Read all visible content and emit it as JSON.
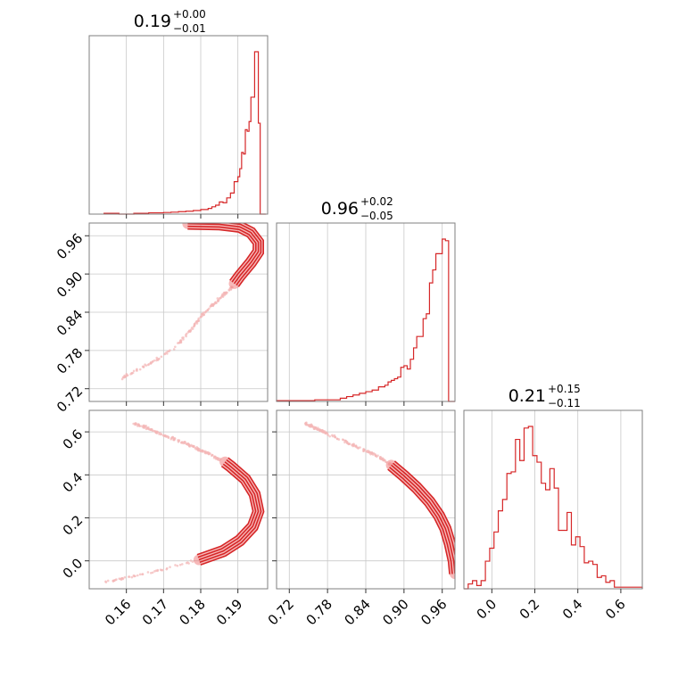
{
  "figure": "corner plot",
  "chart_data": [
    {
      "type": "histogram",
      "panel": "marginal-param-1",
      "title": {
        "value": "0.19",
        "plus": "+0.00",
        "minus": "−0.01"
      },
      "xlim": [
        0.15,
        0.198
      ],
      "bin_edges": [
        0.154,
        0.158,
        0.162,
        0.166,
        0.17,
        0.172,
        0.174,
        0.176,
        0.178,
        0.18,
        0.182,
        0.183,
        0.184,
        0.185,
        0.186,
        0.187,
        0.188,
        0.189,
        0.19,
        0.1905,
        0.191,
        0.1915,
        0.192,
        0.1925,
        0.193,
        0.1935,
        0.194,
        0.1945,
        0.195,
        0.1955,
        0.196,
        0.1965,
        0.197,
        0.1975
      ],
      "counts": [
        0.005,
        0.0,
        0.005,
        0.008,
        0.01,
        0.012,
        0.015,
        0.018,
        0.022,
        0.028,
        0.035,
        0.045,
        0.055,
        0.075,
        0.07,
        0.1,
        0.13,
        0.2,
        0.23,
        0.28,
        0.38,
        0.37,
        0.52,
        0.51,
        0.57,
        0.72,
        0.72,
        1.0,
        1.0,
        0.56,
        0.0,
        0.0,
        0.0
      ],
      "xticks": [
        0.16,
        0.17,
        0.18,
        0.19
      ]
    },
    {
      "type": "histogram",
      "panel": "marginal-param-2",
      "title": {
        "value": "0.96",
        "plus": "+0.02",
        "minus": "−0.05"
      },
      "xlim": [
        0.7,
        0.98
      ],
      "bin_edges": [
        0.7,
        0.74,
        0.76,
        0.78,
        0.8,
        0.81,
        0.82,
        0.83,
        0.84,
        0.85,
        0.86,
        0.87,
        0.875,
        0.88,
        0.885,
        0.89,
        0.895,
        0.9,
        0.905,
        0.91,
        0.915,
        0.92,
        0.925,
        0.93,
        0.935,
        0.94,
        0.945,
        0.95,
        0.955,
        0.96,
        0.965,
        0.97,
        0.975,
        0.98
      ],
      "counts": [
        0.005,
        0.005,
        0.01,
        0.01,
        0.02,
        0.03,
        0.04,
        0.05,
        0.06,
        0.07,
        0.09,
        0.1,
        0.12,
        0.13,
        0.14,
        0.15,
        0.21,
        0.22,
        0.2,
        0.26,
        0.33,
        0.4,
        0.4,
        0.51,
        0.54,
        0.73,
        0.81,
        0.91,
        0.91,
        1.0,
        0.99,
        0.0,
        0.0
      ],
      "xticks": [
        0.72,
        0.78,
        0.84,
        0.9,
        0.96
      ]
    },
    {
      "type": "histogram",
      "panel": "marginal-param-3",
      "title": {
        "value": "0.21",
        "plus": "+0.15",
        "minus": "−0.11"
      },
      "xlim": [
        -0.13,
        0.7
      ],
      "bin_edges": [
        -0.13,
        -0.11,
        -0.09,
        -0.07,
        -0.05,
        -0.03,
        -0.01,
        0.01,
        0.03,
        0.05,
        0.07,
        0.09,
        0.11,
        0.13,
        0.15,
        0.17,
        0.19,
        0.21,
        0.23,
        0.25,
        0.27,
        0.29,
        0.31,
        0.33,
        0.35,
        0.37,
        0.39,
        0.41,
        0.43,
        0.45,
        0.47,
        0.49,
        0.51,
        0.53,
        0.55,
        0.57,
        0.59,
        0.61,
        0.63,
        0.65,
        0.67,
        0.7
      ],
      "counts": [
        0.0,
        0.03,
        0.05,
        0.02,
        0.05,
        0.17,
        0.25,
        0.35,
        0.48,
        0.55,
        0.71,
        0.72,
        0.92,
        0.79,
        0.99,
        1.0,
        0.82,
        0.78,
        0.65,
        0.61,
        0.74,
        0.62,
        0.36,
        0.36,
        0.47,
        0.27,
        0.32,
        0.26,
        0.16,
        0.17,
        0.15,
        0.07,
        0.08,
        0.04,
        0.05,
        0.01,
        0.01,
        0.01,
        0.01,
        0.01,
        0.01
      ],
      "xticks": [
        0.0,
        0.2,
        0.4,
        0.6
      ],
      "xticklabels": [
        "0.0",
        "0.2",
        "0.4",
        "0.6"
      ]
    },
    {
      "type": "scatter",
      "panel": "joint-param-1-vs-param-2",
      "xlim": [
        0.15,
        0.198
      ],
      "ylim": [
        0.7,
        0.98
      ],
      "yticks": [
        0.72,
        0.78,
        0.84,
        0.9,
        0.96
      ],
      "contour_center": [
        [
          0.1765,
          0.979
        ],
        [
          0.185,
          0.978
        ],
        [
          0.1905,
          0.974
        ],
        [
          0.1935,
          0.965
        ],
        [
          0.1955,
          0.95
        ],
        [
          0.1955,
          0.935
        ],
        [
          0.1935,
          0.918
        ],
        [
          0.1905,
          0.897
        ],
        [
          0.189,
          0.885
        ]
      ],
      "sample_band": [
        [
          0.1885,
          0.88
        ],
        [
          0.186,
          0.866
        ],
        [
          0.183,
          0.85
        ],
        [
          0.18,
          0.833
        ],
        [
          0.177,
          0.81
        ],
        [
          0.173,
          0.785
        ],
        [
          0.168,
          0.765
        ],
        [
          0.163,
          0.75
        ],
        [
          0.1585,
          0.735
        ]
      ]
    },
    {
      "type": "scatter",
      "panel": "joint-param-1-vs-param-3",
      "xlim": [
        0.15,
        0.198
      ],
      "ylim": [
        -0.13,
        0.7
      ],
      "xticks": [
        0.16,
        0.17,
        0.18,
        0.19
      ],
      "yticks": [
        0.0,
        0.2,
        0.4,
        0.6
      ],
      "yticklabels": [
        "0.0",
        "0.2",
        "0.4",
        "0.6"
      ],
      "contour_center": [
        [
          0.1795,
          0.005
        ],
        [
          0.186,
          0.045
        ],
        [
          0.1905,
          0.095
        ],
        [
          0.194,
          0.16
        ],
        [
          0.1955,
          0.23
        ],
        [
          0.1945,
          0.31
        ],
        [
          0.192,
          0.38
        ],
        [
          0.188,
          0.44
        ],
        [
          0.1865,
          0.46
        ]
      ],
      "sample_band": [
        [
          0.185,
          0.47
        ],
        [
          0.182,
          0.5
        ],
        [
          0.178,
          0.53
        ],
        [
          0.174,
          0.56
        ],
        [
          0.17,
          0.585
        ],
        [
          0.1655,
          0.62
        ],
        [
          0.162,
          0.64
        ]
      ],
      "sample_tail": [
        [
          0.178,
          0.0
        ],
        [
          0.174,
          -0.02
        ],
        [
          0.17,
          -0.04
        ],
        [
          0.166,
          -0.055
        ],
        [
          0.162,
          -0.07
        ],
        [
          0.158,
          -0.085
        ],
        [
          0.154,
          -0.1
        ]
      ]
    },
    {
      "type": "scatter",
      "panel": "joint-param-2-vs-param-3",
      "xlim": [
        0.7,
        0.98
      ],
      "ylim": [
        -0.13,
        0.7
      ],
      "xticks": [
        0.72,
        0.78,
        0.84,
        0.9,
        0.96
      ],
      "contour_center": [
        [
          0.88,
          0.445
        ],
        [
          0.9,
          0.395
        ],
        [
          0.92,
          0.34
        ],
        [
          0.94,
          0.275
        ],
        [
          0.955,
          0.21
        ],
        [
          0.965,
          0.15
        ],
        [
          0.972,
          0.08
        ],
        [
          0.978,
          0.0
        ],
        [
          0.98,
          -0.06
        ]
      ],
      "sample_band": [
        [
          0.745,
          0.64
        ],
        [
          0.77,
          0.605
        ],
        [
          0.8,
          0.565
        ],
        [
          0.83,
          0.525
        ],
        [
          0.86,
          0.485
        ],
        [
          0.88,
          0.445
        ]
      ]
    }
  ],
  "colors": {
    "line": "#d62728",
    "points": "#f4b6b6",
    "contour_fill": "#f08080",
    "grid": "#c8c8c8",
    "frame": "#7f7f7f"
  }
}
